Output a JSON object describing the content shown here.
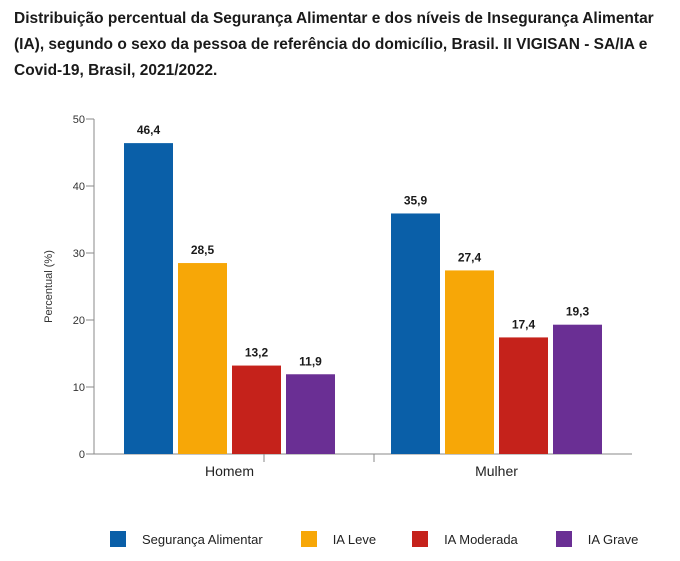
{
  "title": "Distribuição percentual da Segurança Alimentar e dos níveis de Insegurança Alimentar (IA), segundo o sexo da pessoa de referência do domicílio, Brasil. II VIGISAN - SA/IA e Covid-19, Brasil, 2021/2022.",
  "chart_data": {
    "type": "bar",
    "title": "Distribuição percentual da Segurança Alimentar e dos níveis de Insegurança Alimentar (IA), segundo o sexo da pessoa de referência do domicílio, Brasil. II VIGISAN - SA/IA e Covid-19, Brasil, 2021/2022.",
    "categories": [
      "Homem",
      "Mulher"
    ],
    "series": [
      {
        "name": "Segurança Alimentar",
        "values": [
          46.4,
          35.9
        ],
        "labels": [
          "46,4",
          "35,9"
        ],
        "color": "#0a5fa8"
      },
      {
        "name": "IA Leve",
        "values": [
          28.5,
          27.4
        ],
        "labels": [
          "28,5",
          "27,4"
        ],
        "color": "#f7a707"
      },
      {
        "name": "IA Moderada",
        "values": [
          13.2,
          17.4
        ],
        "labels": [
          "13,2",
          "17,4"
        ],
        "color": "#c5221b"
      },
      {
        "name": "IA Grave",
        "values": [
          11.9,
          19.3
        ],
        "labels": [
          "11,9",
          "19,3"
        ],
        "color": "#6a2f94"
      }
    ],
    "xlabel": "",
    "ylabel": "Percentual (%)",
    "ylim": [
      0,
      50
    ],
    "yticks": [
      0,
      10,
      20,
      30,
      40,
      50
    ],
    "grid": false,
    "legend_position": "bottom"
  }
}
